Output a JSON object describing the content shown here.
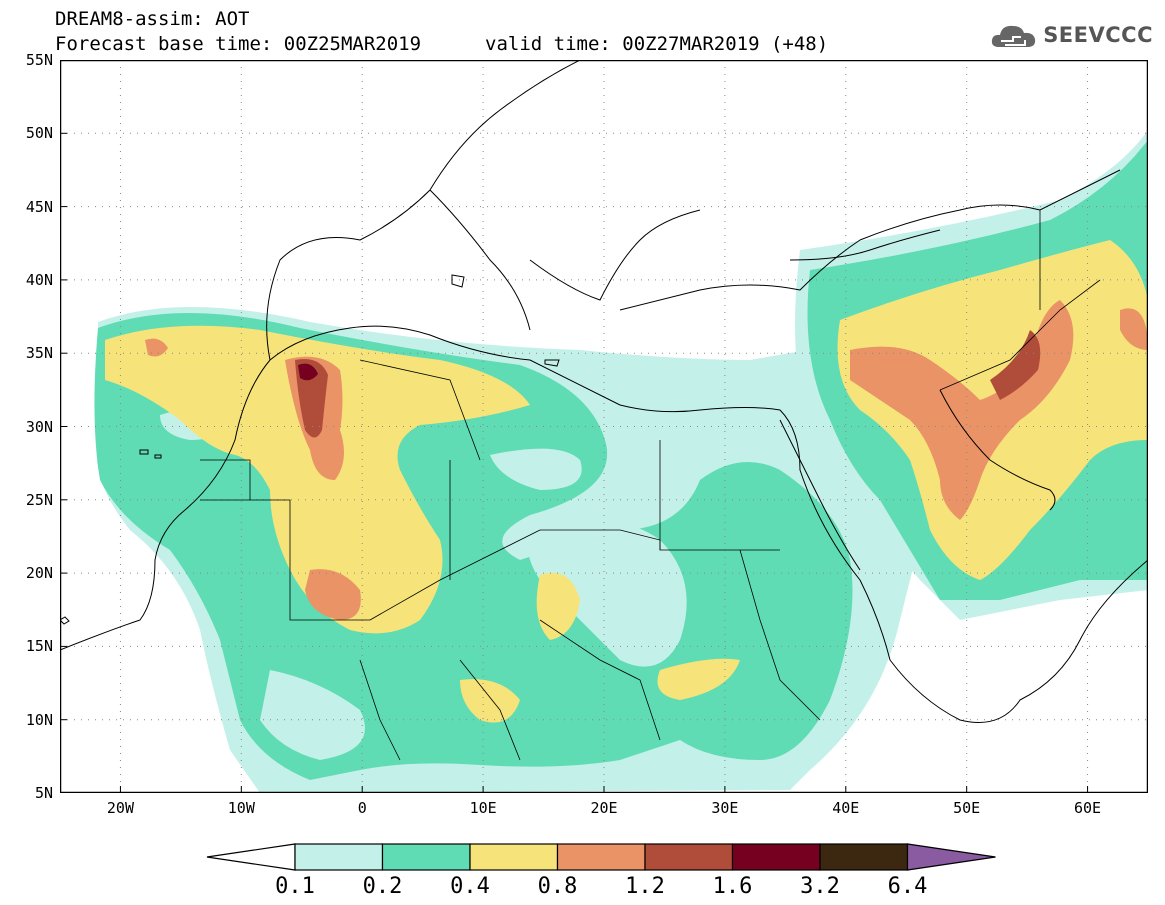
{
  "header": {
    "model": "DREAM8-assim: AOT",
    "base_time": "Forecast base time: 00Z25MAR2019",
    "valid_time": "valid time: 00Z27MAR2019 (+48)"
  },
  "logo": {
    "icon": "cloud-icon",
    "text": "SEEVCCC",
    "color": "#555555"
  },
  "map": {
    "lon_range": [
      -25,
      65
    ],
    "lat_range": [
      5,
      55
    ],
    "grid": "dotted",
    "lat_ticks": [
      {
        "value": 55,
        "label": "55N"
      },
      {
        "value": 50,
        "label": "50N"
      },
      {
        "value": 45,
        "label": "45N"
      },
      {
        "value": 40,
        "label": "40N"
      },
      {
        "value": 35,
        "label": "35N"
      },
      {
        "value": 30,
        "label": "30N"
      },
      {
        "value": 25,
        "label": "25N"
      },
      {
        "value": 20,
        "label": "20N"
      },
      {
        "value": 15,
        "label": "15N"
      },
      {
        "value": 10,
        "label": "10N"
      },
      {
        "value": 5,
        "label": "5N"
      }
    ],
    "lon_ticks": [
      {
        "value": -20,
        "label": "20W"
      },
      {
        "value": -10,
        "label": "10W"
      },
      {
        "value": 0,
        "label": "0"
      },
      {
        "value": 10,
        "label": "10E"
      },
      {
        "value": 20,
        "label": "20E"
      },
      {
        "value": 30,
        "label": "30E"
      },
      {
        "value": 40,
        "label": "40E"
      },
      {
        "value": 50,
        "label": "50E"
      },
      {
        "value": 60,
        "label": "60E"
      }
    ]
  },
  "colorbar": {
    "levels": [
      "0.1",
      "0.2",
      "0.4",
      "0.8",
      "1.2",
      "1.6",
      "3.2",
      "6.4"
    ],
    "colors": [
      "#ffffff",
      "#c4f0ea",
      "#5fdcb4",
      "#f6e47a",
      "#ea9366",
      "#b04c3a",
      "#760020",
      "#3c2810",
      "#8a5ba0"
    ]
  }
}
